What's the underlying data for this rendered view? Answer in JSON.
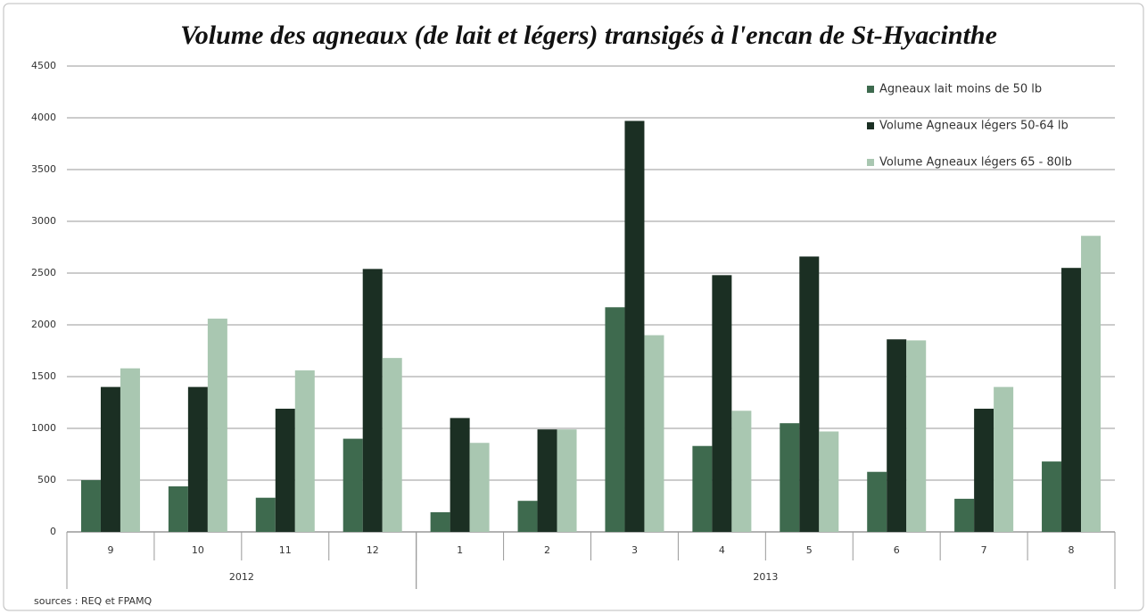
{
  "chart_data": {
    "type": "bar",
    "title": "Volume des agneaux (de lait et légers) transigés à l'encan de St-Hyacinthe",
    "categories": [
      "9",
      "10",
      "11",
      "12",
      "1",
      "2",
      "3",
      "4",
      "5",
      "6",
      "7",
      "8"
    ],
    "groups": [
      {
        "label": "2012",
        "span": 4
      },
      {
        "label": "2013",
        "span": 8
      }
    ],
    "series": [
      {
        "name": "Agneaux lait moins de 50 lb",
        "color": "#3e6a4e",
        "values": [
          500,
          440,
          330,
          900,
          190,
          300,
          2170,
          830,
          1050,
          580,
          320,
          680
        ]
      },
      {
        "name": "Volume Agneaux légers  50-64 lb",
        "color": "#1b2f23",
        "values": [
          1400,
          1400,
          1190,
          2540,
          1100,
          990,
          3970,
          2480,
          2660,
          1860,
          1190,
          2550
        ]
      },
      {
        "name": "Volume Agneaux légers 65 - 80lb",
        "color": "#a9c7b1",
        "values": [
          1580,
          2060,
          1560,
          1680,
          860,
          990,
          1900,
          1170,
          970,
          1850,
          1400,
          2860
        ]
      }
    ],
    "ylim": [
      0,
      4500
    ],
    "yticks": [
      0,
      500,
      1000,
      1500,
      2000,
      2500,
      3000,
      3500,
      4000,
      4500
    ],
    "grid": true,
    "legend": "top-right",
    "source": "sources : REQ et FPAMQ"
  }
}
